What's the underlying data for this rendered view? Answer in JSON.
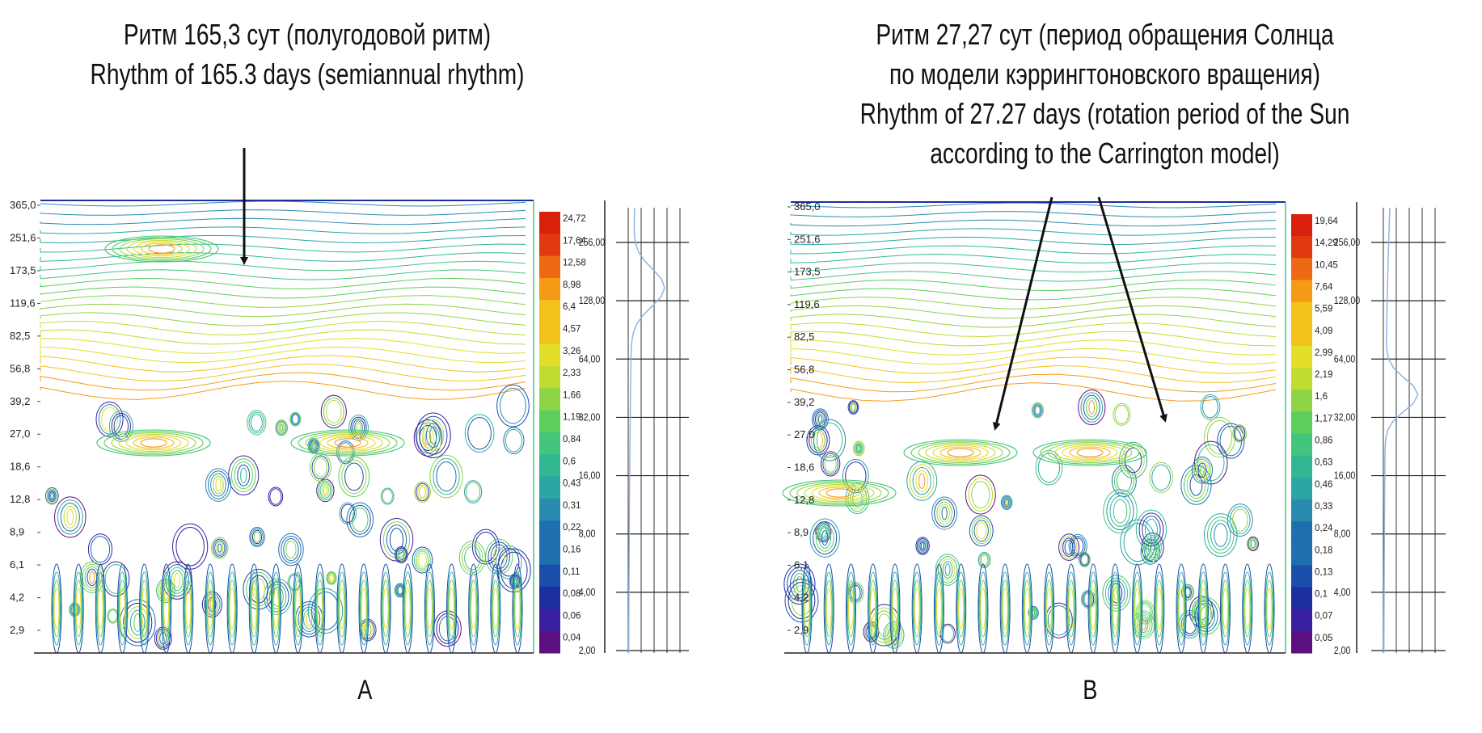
{
  "panels": [
    {
      "label": "A",
      "title_ru": "Ритм 165,3 сут (полугодовой ритм)",
      "title_en": "Rhythm of 165.3 days (semiannual rhythm)"
    },
    {
      "label": "B",
      "title_ru_1": "Ритм 27,27 сут (период обращения Солнца",
      "title_ru_2": "по модели кэррингтоновского вращения)",
      "title_en_1": "Rhythm of 27.27 days (rotation period of the Sun",
      "title_en_2": "according to the Carrington model)"
    }
  ],
  "colors": {
    "scale": [
      "#5b0f80",
      "#3a1fa0",
      "#1c2f9f",
      "#1b4ea8",
      "#1d6fae",
      "#2a8bb0",
      "#2ba5a6",
      "#31b893",
      "#43c57d",
      "#5cce5c",
      "#8ed545",
      "#bfdc33",
      "#e3de2a",
      "#f3c21a",
      "#f59a16",
      "#ee6a12",
      "#e23a10",
      "#d8200d"
    ],
    "stroke": "#111111"
  },
  "chart_data": [
    {
      "type": "heatmap",
      "title": "Ритм 165,3 сут (полугодовой ритм)",
      "subtitle": "Rhythm of 165.3 days (semiannual rhythm)",
      "ylabel": "",
      "xlabel": "",
      "y_ticks": [
        "365,0",
        "251,6",
        "173,5",
        "119,6",
        "82,5",
        "56,8",
        "39,2",
        "27,0",
        "18,6",
        "12,8",
        "8,9",
        "6,1",
        "4,2",
        "2,9"
      ],
      "colorbar_ticks": [
        "24,72",
        "17,64",
        "12,58",
        "8,98",
        "6,4",
        "4,57",
        "3,26",
        "2,33",
        "1,66",
        "1,19",
        "0,84",
        "0,6",
        "0,43",
        "0,31",
        "0,22",
        "0,16",
        "0,11",
        "0,08",
        "0,06",
        "0,04"
      ],
      "global_spectrum_ticks": [
        "256,00",
        "128,00",
        "64,00",
        "32,00",
        "16,00",
        "8,00",
        "4,00",
        "2,00"
      ],
      "annotation": {
        "text": "Rhythm of 165.3 days",
        "period": 165.3
      }
    },
    {
      "type": "heatmap",
      "title": "Ритм 27,27 сут (период обращения Солнца по модели кэррингтоновского вращения)",
      "subtitle": "Rhythm of 27.27 days (rotation period of the Sun according to the Carrington model)",
      "ylabel": "",
      "xlabel": "",
      "y_ticks": [
        "365,0",
        "251,6",
        "173,5",
        "119,6",
        "82,5",
        "56,8",
        "39,2",
        "27,0",
        "18,6",
        "12,8",
        "8,9",
        "6,1",
        "4,2",
        "2,9"
      ],
      "colorbar_ticks": [
        "19,64",
        "14,29",
        "10,45",
        "7,64",
        "5,59",
        "4,09",
        "2,99",
        "2,19",
        "1,6",
        "1,17",
        "0,86",
        "0,63",
        "0,46",
        "0,33",
        "0,24",
        "0,18",
        "0,13",
        "0,1",
        "0,07",
        "0,05"
      ],
      "global_spectrum_ticks": [
        "256,00",
        "128,00",
        "64,00",
        "32,00",
        "16,00",
        "8,00",
        "4,00",
        "2,00"
      ],
      "annotation": {
        "text": "Rhythm of 27.27 days",
        "period": 27.27
      }
    }
  ]
}
